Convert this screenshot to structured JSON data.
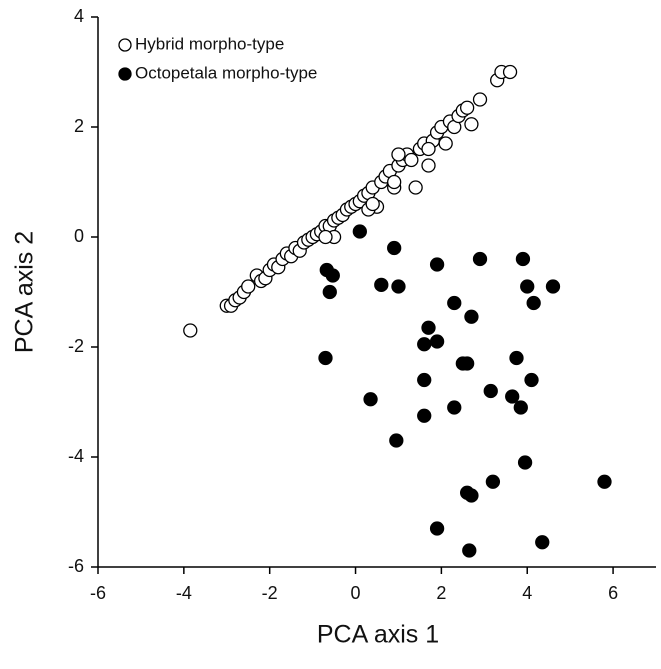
{
  "chart_data": {
    "type": "scatter",
    "xlabel": "PCA axis 1",
    "ylabel": "PCA axis 2",
    "xlim": [
      -6,
      7
    ],
    "ylim": [
      -6,
      4
    ],
    "xticks": [
      -6,
      -4,
      -2,
      0,
      2,
      4,
      6
    ],
    "yticks": [
      -6,
      -4,
      -2,
      0,
      2,
      4
    ],
    "legend": "upper left",
    "series": [
      {
        "name": "Hybrid morpho-type",
        "color": "#000000",
        "filled": false,
        "x": [
          -3.85,
          -3.0,
          -2.9,
          -2.8,
          -2.7,
          -2.6,
          -2.5,
          -2.3,
          -2.2,
          -2.1,
          -2.0,
          -1.9,
          -1.8,
          -1.7,
          -1.6,
          -1.5,
          -1.4,
          -1.3,
          -1.2,
          -1.1,
          -1.0,
          -0.9,
          -0.8,
          -0.7,
          -0.6,
          -0.5,
          -0.4,
          -0.3,
          -0.2,
          -0.1,
          0.0,
          0.1,
          0.2,
          0.3,
          0.4,
          0.5,
          0.3,
          0.6,
          0.7,
          0.8,
          0.9,
          1.0,
          1.1,
          1.2,
          1.3,
          1.4,
          1.0,
          1.5,
          1.6,
          1.7,
          1.8,
          1.9,
          2.0,
          2.1,
          2.2,
          2.3,
          2.4,
          2.5,
          2.6,
          2.7,
          2.9,
          3.3,
          3.4,
          3.6,
          1.7,
          0.9,
          -0.5,
          -0.7,
          0.4
        ],
        "values": [
          -1.7,
          -1.25,
          -1.25,
          -1.15,
          -1.1,
          -1.0,
          -0.9,
          -0.7,
          -0.8,
          -0.75,
          -0.6,
          -0.5,
          -0.55,
          -0.4,
          -0.3,
          -0.35,
          -0.2,
          -0.25,
          -0.1,
          -0.05,
          0.0,
          0.05,
          0.1,
          0.2,
          0.2,
          0.3,
          0.35,
          0.4,
          0.5,
          0.55,
          0.6,
          0.65,
          0.75,
          0.8,
          0.9,
          0.55,
          0.5,
          1.0,
          1.1,
          1.2,
          0.9,
          1.3,
          1.4,
          1.5,
          1.4,
          0.9,
          1.5,
          1.6,
          1.7,
          1.3,
          1.75,
          1.9,
          2.0,
          1.7,
          2.1,
          2.0,
          2.2,
          2.3,
          2.35,
          2.05,
          2.5,
          2.85,
          3.0,
          3.0,
          1.6,
          1.0,
          0.0,
          0.0,
          0.6
        ]
      },
      {
        "name": "Octopetala morpho-type",
        "color": "#000000",
        "filled": true,
        "x": [
          0.1,
          0.9,
          -0.67,
          -0.53,
          -0.6,
          0.6,
          1.0,
          1.9,
          2.9,
          3.9,
          4.6,
          4.0,
          4.15,
          2.3,
          2.7,
          1.7,
          1.6,
          1.9,
          -0.7,
          2.6,
          2.5,
          3.75,
          4.1,
          1.6,
          3.15,
          3.65,
          3.85,
          0.35,
          2.3,
          1.6,
          0.95,
          3.95,
          3.2,
          5.8,
          2.6,
          2.7,
          1.9,
          4.35,
          2.65
        ],
        "values": [
          0.1,
          -0.2,
          -0.6,
          -0.7,
          -1.0,
          -0.87,
          -0.9,
          -0.5,
          -0.4,
          -0.4,
          -0.9,
          -0.9,
          -1.2,
          -1.2,
          -1.45,
          -1.65,
          -1.95,
          -1.9,
          -2.2,
          -2.3,
          -2.3,
          -2.2,
          -2.6,
          -2.6,
          -2.8,
          -2.9,
          -3.1,
          -2.95,
          -3.1,
          -3.25,
          -3.7,
          -4.1,
          -4.45,
          -4.45,
          -4.65,
          -4.7,
          -5.3,
          -5.55,
          -5.7
        ]
      }
    ]
  }
}
